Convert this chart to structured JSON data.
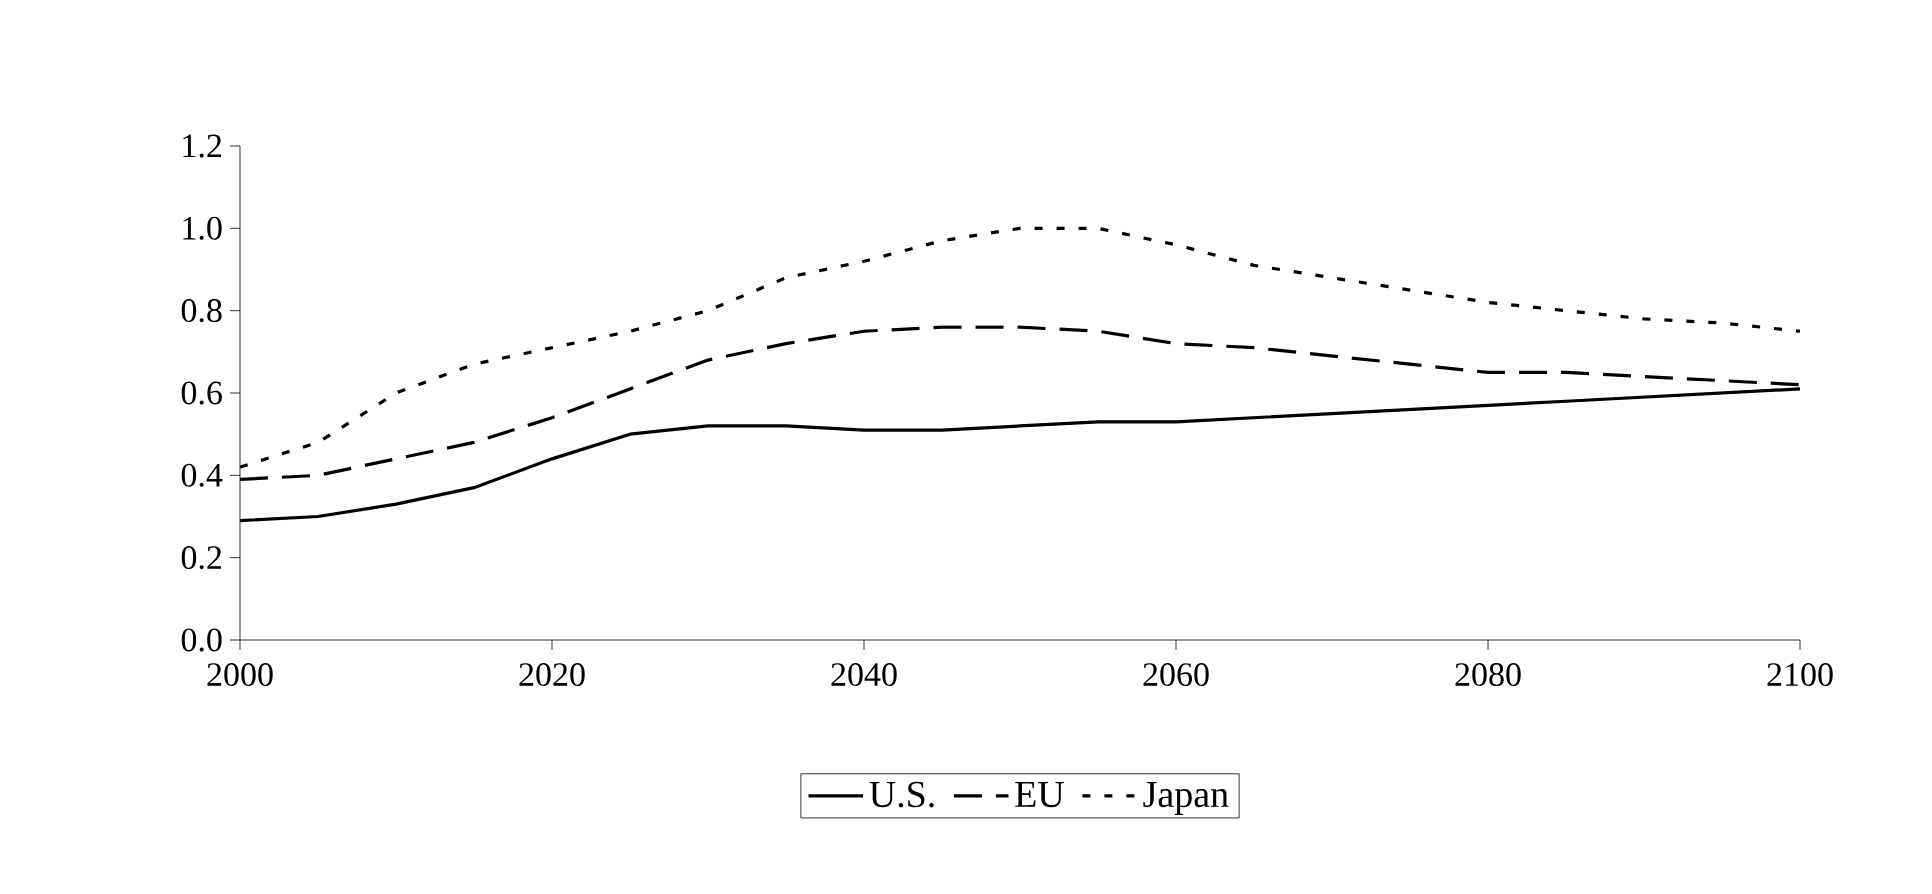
{
  "chart_data": {
    "type": "line",
    "x": [
      2000,
      2005,
      2010,
      2015,
      2020,
      2025,
      2030,
      2035,
      2040,
      2045,
      2050,
      2055,
      2060,
      2065,
      2070,
      2075,
      2080,
      2085,
      2090,
      2095,
      2100
    ],
    "series": [
      {
        "name": "U.S.",
        "color": "#000000",
        "line_style": "solid",
        "values": [
          0.29,
          0.3,
          0.33,
          0.37,
          0.44,
          0.5,
          0.52,
          0.52,
          0.51,
          0.51,
          0.52,
          0.53,
          0.53,
          0.54,
          0.55,
          0.56,
          0.57,
          0.58,
          0.59,
          0.6,
          0.61
        ]
      },
      {
        "name": "EU",
        "color": "#000000",
        "line_style": "dashed",
        "values": [
          0.39,
          0.4,
          0.44,
          0.48,
          0.54,
          0.61,
          0.68,
          0.72,
          0.75,
          0.76,
          0.76,
          0.75,
          0.72,
          0.71,
          0.69,
          0.67,
          0.65,
          0.65,
          0.64,
          0.63,
          0.62
        ]
      },
      {
        "name": "Japan",
        "color": "#000000",
        "line_style": "dotted",
        "values": [
          0.42,
          0.48,
          0.6,
          0.67,
          0.71,
          0.75,
          0.8,
          0.88,
          0.92,
          0.97,
          1.0,
          1.0,
          0.96,
          0.91,
          0.88,
          0.85,
          0.82,
          0.8,
          0.78,
          0.77,
          0.75
        ]
      }
    ],
    "xlim": [
      2000,
      2100
    ],
    "xticks": [
      2000,
      2020,
      2040,
      2060,
      2080,
      2100
    ],
    "ylim": [
      0,
      1.2
    ],
    "yticks": [
      {
        "value": 0,
        "label": "0.0"
      },
      {
        "value": 0.2,
        "label": "0.2"
      },
      {
        "value": 0.4,
        "label": "0.4"
      },
      {
        "value": 0.6,
        "label": "0.6"
      },
      {
        "value": 0.8,
        "label": "0.8"
      },
      {
        "value": 1.0,
        "label": "1.0"
      },
      {
        "value": 1.2,
        "label": "1.2"
      }
    ],
    "grid": false,
    "legend": "bottom",
    "marker": "none"
  }
}
